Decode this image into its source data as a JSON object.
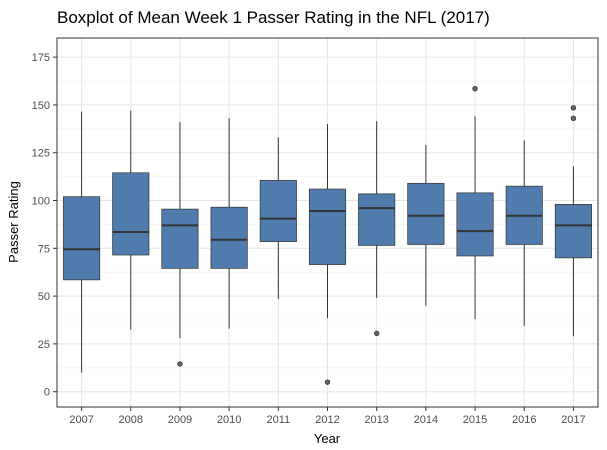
{
  "chart_data": {
    "type": "boxplot",
    "title": "Boxplot of Mean Week 1 Passer Rating in the NFL (2017)",
    "xlabel": "Year",
    "ylabel": "Passer Rating",
    "ylim": [
      -8,
      185
    ],
    "yticks": [
      0,
      25,
      50,
      75,
      100,
      125,
      150,
      175
    ],
    "grid": true,
    "box_color": "#4f7cac",
    "categories": [
      "2007",
      "2008",
      "2009",
      "2010",
      "2011",
      "2012",
      "2013",
      "2014",
      "2015",
      "2016",
      "2017"
    ],
    "boxes": [
      {
        "year": "2007",
        "min": 10,
        "q1": 58.5,
        "median": 74.5,
        "q3": 102,
        "max": 146.5,
        "outliers": []
      },
      {
        "year": "2008",
        "min": 32.5,
        "q1": 71.5,
        "median": 83.5,
        "q3": 114.5,
        "max": 147,
        "outliers": []
      },
      {
        "year": "2009",
        "min": 28,
        "q1": 64.5,
        "median": 87,
        "q3": 95.5,
        "max": 141,
        "outliers": [
          14.5
        ]
      },
      {
        "year": "2010",
        "min": 33,
        "q1": 64.5,
        "median": 79.5,
        "q3": 96.5,
        "max": 143,
        "outliers": []
      },
      {
        "year": "2011",
        "min": 48.5,
        "q1": 78.5,
        "median": 90.5,
        "q3": 110.5,
        "max": 133,
        "outliers": []
      },
      {
        "year": "2012",
        "min": 38.5,
        "q1": 66.5,
        "median": 94.5,
        "q3": 106,
        "max": 140,
        "outliers": [
          5
        ]
      },
      {
        "year": "2013",
        "min": 49,
        "q1": 76.5,
        "median": 96,
        "q3": 103.5,
        "max": 141.5,
        "outliers": [
          30.5
        ]
      },
      {
        "year": "2014",
        "min": 45,
        "q1": 77,
        "median": 92,
        "q3": 109,
        "max": 129,
        "outliers": []
      },
      {
        "year": "2015",
        "min": 38,
        "q1": 71,
        "median": 84,
        "q3": 104,
        "max": 144,
        "outliers": [
          158.5
        ]
      },
      {
        "year": "2016",
        "min": 34.5,
        "q1": 77,
        "median": 92,
        "q3": 107.5,
        "max": 131.5,
        "outliers": []
      },
      {
        "year": "2017",
        "min": 29,
        "q1": 70,
        "median": 87,
        "q3": 98,
        "max": 118,
        "outliers": [
          143,
          148.5
        ]
      }
    ]
  }
}
